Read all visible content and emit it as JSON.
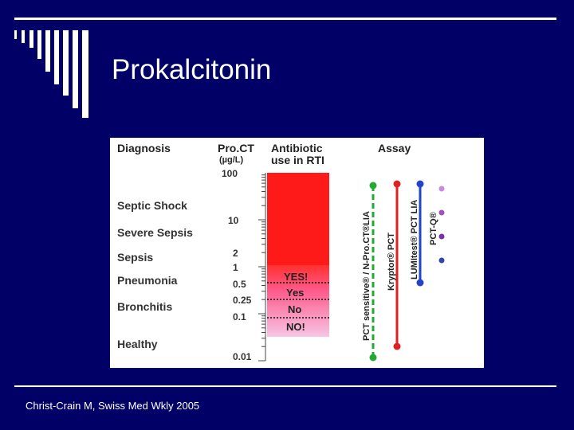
{
  "slide": {
    "title": "Prokalcitonin",
    "citation": "Christ-Crain M, Swiss Med Wkly 2005"
  },
  "colors": {
    "background": "#000066",
    "rule": "#ffffff",
    "bar_red": "#ff1a1a",
    "bar_pink": "#f0a8d8",
    "assay_green": "#22aa33",
    "assay_red": "#dd2222",
    "assay_blue": "#2244cc",
    "assay_purple": "#7733aa"
  },
  "figure": {
    "headers": {
      "diagnosis": "Diagnosis",
      "proct": "Pro.CT",
      "unit": "(µg/L)",
      "antibiotic_line1": "Antibiotic",
      "antibiotic_line2": "use in RTI",
      "assay": "Assay"
    },
    "diagnoses": [
      "Septic Shock",
      "Severe Sepsis",
      "Sepsis",
      "Pneumonia",
      "Bronchitis",
      "Healthy"
    ],
    "scale_labels": [
      "100",
      "10",
      "2",
      "1",
      "0.5",
      "0.25",
      "0.1",
      "0.01"
    ],
    "antibiotic_levels": [
      "YES!",
      "Yes",
      "No",
      "NO!"
    ],
    "assays": [
      "PCT sensitive® / N-Pro.CT®LIA",
      "Kryptor® PCT",
      "LUMItest® PCT LIA",
      "PCT-Q®"
    ],
    "pctq_icon": "dot-markers"
  }
}
